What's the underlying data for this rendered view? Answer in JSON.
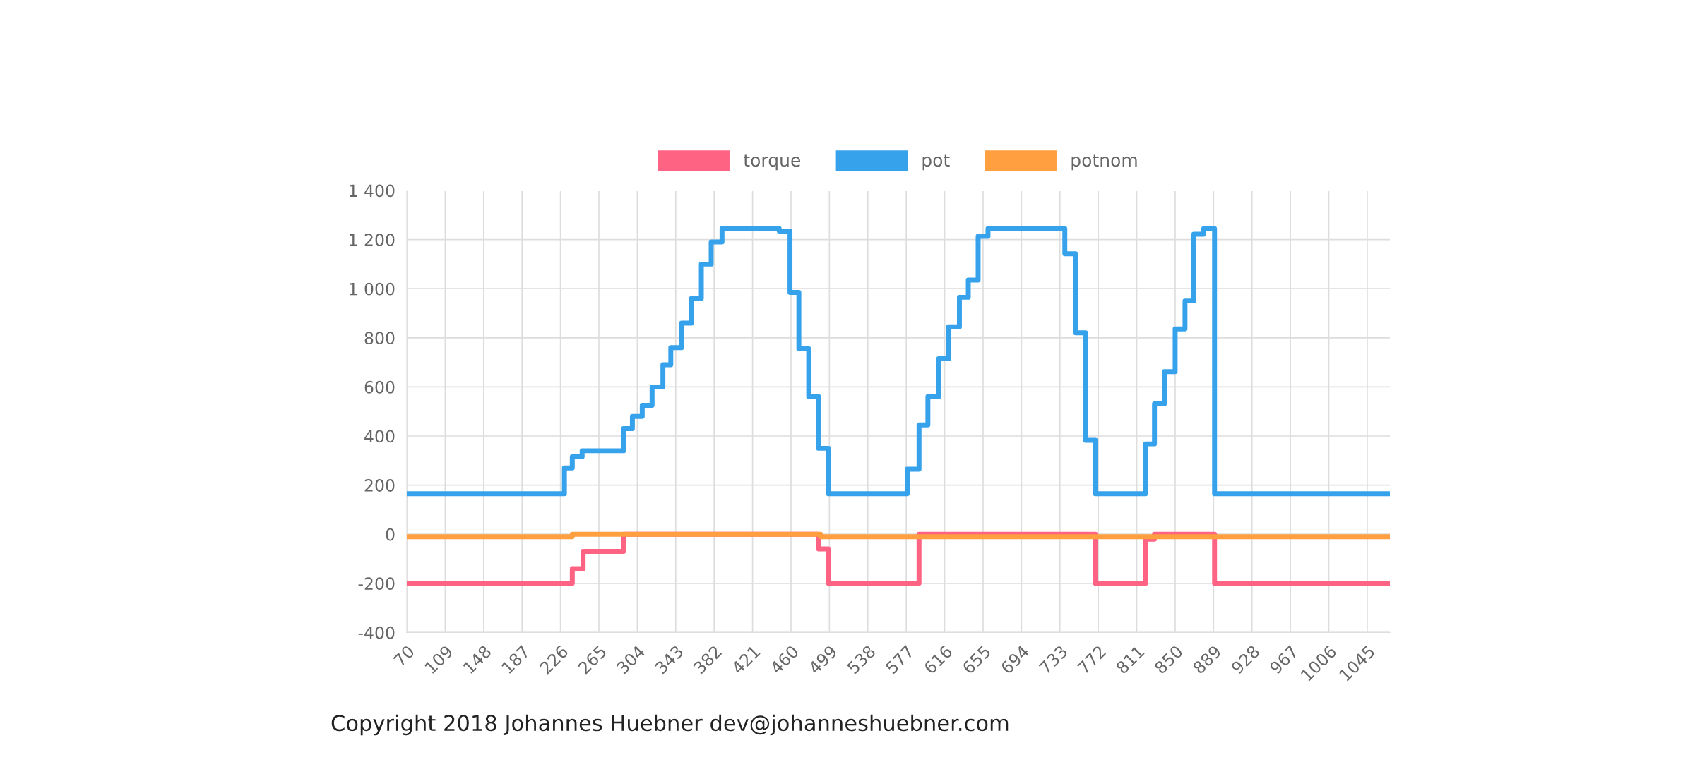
{
  "chart_data": {
    "type": "step",
    "xlim": [
      70,
      1068
    ],
    "xticks": [
      70,
      109,
      148,
      187,
      226,
      265,
      304,
      343,
      382,
      421,
      460,
      499,
      538,
      577,
      616,
      655,
      694,
      733,
      772,
      811,
      850,
      889,
      928,
      967,
      1006,
      1045
    ],
    "ylim": [
      -400,
      1400
    ],
    "yticks": [
      {
        "value": -400,
        "label": "-400"
      },
      {
        "value": -200,
        "label": "-200"
      },
      0,
      200,
      400,
      600,
      800,
      {
        "value": 1000,
        "label": "1 000"
      },
      {
        "value": 1200,
        "label": "1 200"
      },
      {
        "value": 1400,
        "label": "1 400"
      }
    ],
    "grid": true,
    "legend": "top",
    "marker": "none",
    "line_style": "solid",
    "series": [
      {
        "name": "torque",
        "color": "#ff6384",
        "x": [
          70,
          238,
          249,
          290,
          488,
          498,
          590,
          769,
          820,
          829,
          890,
          1068
        ],
        "values": [
          -200,
          -140,
          -70,
          0,
          -60,
          -200,
          0,
          -200,
          -20,
          0,
          -200,
          -200
        ]
      },
      {
        "name": "pot",
        "color": "#36a2eb",
        "x": [
          70,
          230,
          238,
          248,
          290,
          299,
          309,
          319,
          330,
          338,
          349,
          359,
          369,
          379,
          390,
          448,
          459,
          468,
          478,
          488,
          498,
          578,
          590,
          599,
          610,
          620,
          631,
          640,
          650,
          660,
          738,
          749,
          759,
          769,
          820,
          829,
          839,
          850,
          860,
          869,
          879,
          890,
          1068
        ],
        "values": [
          165,
          270,
          315,
          340,
          430,
          480,
          525,
          600,
          690,
          760,
          860,
          960,
          1100,
          1190,
          1245,
          1235,
          985,
          755,
          560,
          350,
          165,
          265,
          445,
          560,
          715,
          845,
          965,
          1035,
          1213,
          1244,
          1142,
          820,
          383,
          165,
          368,
          531,
          662,
          836,
          950,
          1222,
          1244,
          165,
          165
        ]
      },
      {
        "name": "potnom",
        "color": "#ff9f40",
        "x": [
          70,
          238,
          490,
          1068
        ],
        "values": [
          -10,
          0,
          -10,
          -10
        ]
      }
    ],
    "annotations": [
      "Copyright 2018 Johannes Huebner dev@johanneshuebner.com"
    ]
  }
}
